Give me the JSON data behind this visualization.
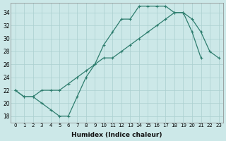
{
  "xlabel": "Humidex (Indice chaleur)",
  "xlim": [
    -0.5,
    23.5
  ],
  "ylim": [
    17,
    35.5
  ],
  "xticks": [
    0,
    1,
    2,
    3,
    4,
    5,
    6,
    7,
    8,
    9,
    10,
    11,
    12,
    13,
    14,
    15,
    16,
    17,
    18,
    19,
    20,
    21,
    22,
    23
  ],
  "yticks": [
    18,
    20,
    22,
    24,
    26,
    28,
    30,
    32,
    34
  ],
  "line_color": "#2e7d6e",
  "bg_color": "#cce8e8",
  "grid_color": "#aacfcf",
  "line1_x": [
    0,
    1,
    2,
    3,
    4,
    5,
    6,
    7,
    8,
    9,
    10,
    11,
    12,
    13,
    14,
    15,
    16,
    17,
    18,
    19,
    20,
    21
  ],
  "line1_y": [
    22,
    21,
    21,
    20,
    19,
    18,
    18,
    21,
    24,
    26,
    29,
    31,
    33,
    33,
    35,
    35,
    35,
    35,
    34,
    34,
    31,
    27
  ],
  "line2_x": [
    0,
    1,
    2,
    3,
    4,
    5,
    6,
    7,
    8,
    9,
    10,
    11,
    12,
    13,
    14,
    15,
    16,
    17,
    18,
    19,
    20,
    21,
    22,
    23
  ],
  "line2_y": [
    22,
    21,
    21,
    22,
    22,
    22,
    23,
    24,
    25,
    26,
    27,
    27,
    28,
    29,
    30,
    31,
    32,
    33,
    34,
    34,
    33,
    31,
    28,
    27
  ]
}
